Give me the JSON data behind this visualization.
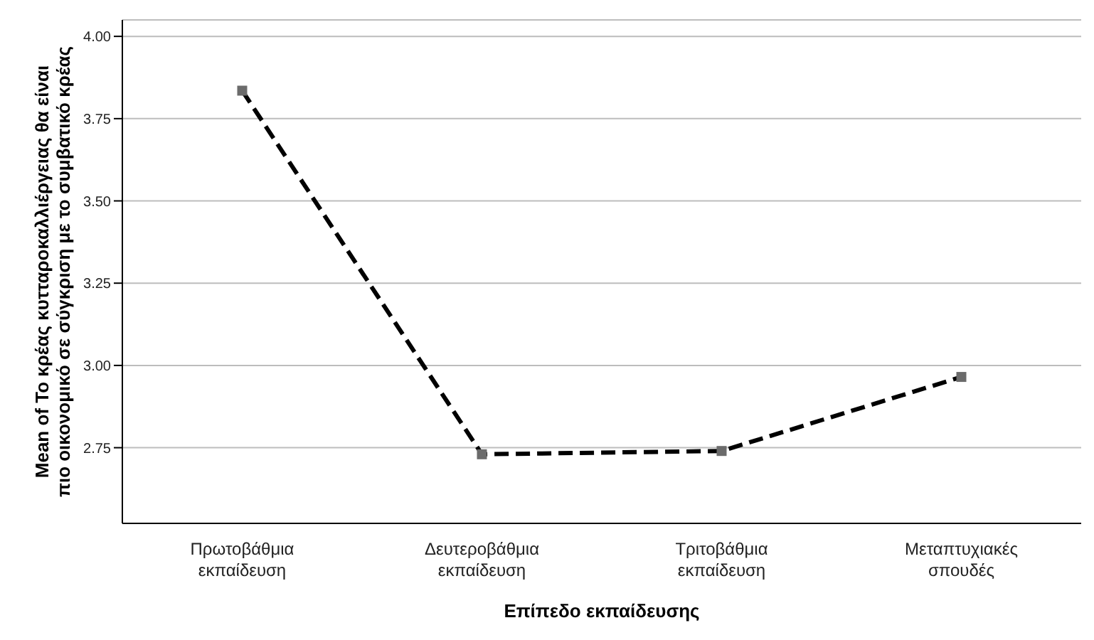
{
  "chart_data": {
    "type": "line",
    "xlabel": "Επίπεδο εκπαίδευσης",
    "ylabel": "Mean of Το κρέας κυτταροκαλλιέργειας θα είναι πιο οικονομικό σε σύγκριση με το συμβατικό κρέας",
    "categories": [
      "Πρωτοβάθμια εκπαίδευση",
      "Δευτεροβάθμια εκπαίδευση",
      "Τριτοβάθμια εκπαίδευση",
      "Μεταπτυχιακές σπουδές"
    ],
    "series": [
      {
        "color": "#000000",
        "colors": [
          "#6b6b6b",
          "#6b6b6b",
          "#6b6b6b",
          "#6b6b6b"
        ],
        "values": [
          3.835,
          2.73,
          2.74,
          2.965
        ]
      }
    ],
    "ylim": [
      2.52,
      4.05
    ],
    "yticks": [
      {
        "value": 2.75,
        "label": "2.75"
      },
      {
        "value": 3,
        "label": "3.00"
      },
      {
        "value": 3.25,
        "label": "3.25"
      },
      {
        "value": 3.5,
        "label": "3.50"
      },
      {
        "value": 3.75,
        "label": "3.75"
      },
      {
        "value": 4,
        "label": "4.00"
      }
    ],
    "grid": "y",
    "marker": "square",
    "line_style": "dashed"
  }
}
